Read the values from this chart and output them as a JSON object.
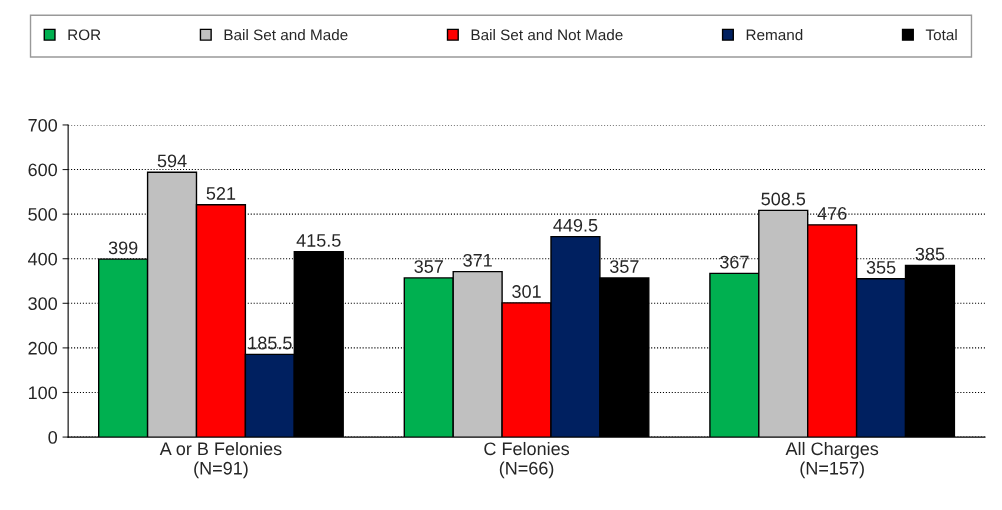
{
  "chart_data": {
    "type": "bar",
    "categories": [
      "A or B Felonies\n(N=91)",
      "C Felonies\n(N=66)",
      "All Charges\n(N=157)"
    ],
    "series": [
      {
        "name": "ROR",
        "color": "#00b050",
        "values": [
          399,
          357,
          367
        ]
      },
      {
        "name": "Bail Set and Made",
        "color": "#c0c0c0",
        "values": [
          594,
          371,
          508.5
        ]
      },
      {
        "name": "Bail Set and Not Made",
        "color": "#ff0000",
        "values": [
          521,
          301,
          476
        ]
      },
      {
        "name": "Remand",
        "color": "#002060",
        "values": [
          185.5,
          449.5,
          355
        ]
      },
      {
        "name": "Total",
        "color": "#000000",
        "values": [
          415.5,
          357,
          385
        ]
      }
    ],
    "ylim": [
      0,
      700
    ],
    "yticks": [
      0,
      100,
      200,
      300,
      400,
      500,
      600,
      700
    ],
    "grid": "y",
    "legend": "top",
    "data_labels": true
  }
}
